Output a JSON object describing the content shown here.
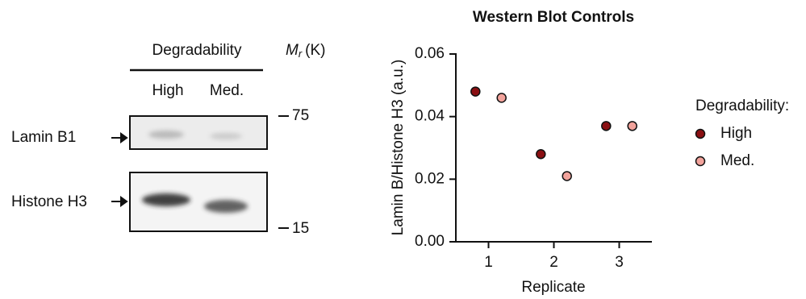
{
  "blot": {
    "header": "Degradability",
    "lanes": [
      "High",
      "Med."
    ],
    "mr_label": {
      "symbol": "M",
      "subscript": "r",
      "unit": "(K)"
    },
    "markers": [
      75,
      15
    ],
    "rows": [
      "Lamin B1",
      "Histone H3"
    ]
  },
  "chart_data": {
    "type": "scatter",
    "title": "Western Blot Controls",
    "x_label": "Replicate",
    "y_label": "Lamin B/Histone H3 (a.u.)",
    "legend_title": "Degradability:",
    "legend": "right",
    "xlim": [
      0.5,
      3.5
    ],
    "xticks": [
      1,
      2,
      3
    ],
    "ylim": [
      0,
      0.06
    ],
    "yticks": [
      {
        "value": 0,
        "label": "0.00"
      },
      {
        "value": 0.02,
        "label": "0.02"
      },
      {
        "value": 0.04,
        "label": "0.04"
      },
      {
        "value": 0.06,
        "label": "0.06"
      }
    ],
    "series": [
      {
        "name": "High",
        "color": "#8a0f12",
        "x": [
          0.8,
          1.8,
          2.8
        ],
        "values": [
          0.048,
          0.028,
          0.037
        ]
      },
      {
        "name": "Med.",
        "color": "#f2a39c",
        "x": [
          1.2,
          2.2,
          3.2
        ],
        "values": [
          0.046,
          0.021,
          0.037
        ]
      }
    ]
  }
}
